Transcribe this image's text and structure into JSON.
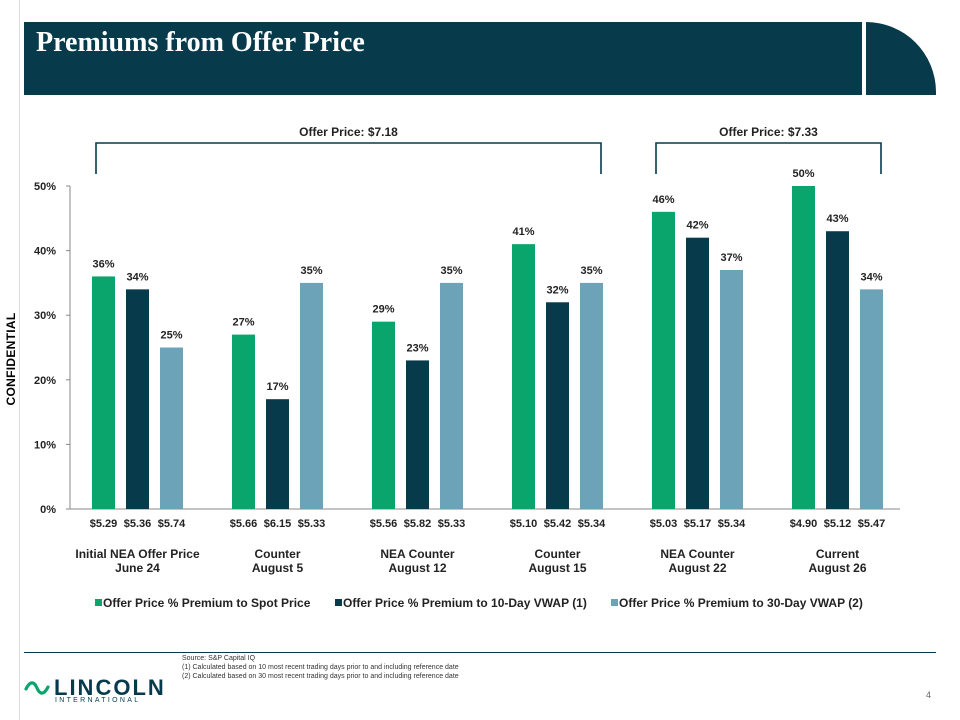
{
  "slide": {
    "title": "Premiums from Offer Price",
    "confidential": "CONFIDENTIAL",
    "page_number": "4"
  },
  "brand": {
    "name": "LINCOLN",
    "sub": "INTERNATIONAL",
    "color": "#073b4c"
  },
  "footnotes": [
    "Source: S&P Capital IQ",
    "(1) Calculated based on 10 most recent trading days prior to and including reference date",
    "(2) Calculated based on 30 most recent trading days prior to and including reference date"
  ],
  "chart_data": {
    "type": "bar",
    "y_unit": "%",
    "ylim": [
      0,
      50
    ],
    "yticks": [
      0,
      10,
      20,
      30,
      40,
      50
    ],
    "grid": false,
    "legend_position": "bottom",
    "brackets": [
      {
        "label": "Offer Price: $7.18",
        "from_group": 0,
        "to_group": 3
      },
      {
        "label": "Offer Price: $7.33",
        "from_group": 4,
        "to_group": 5
      }
    ],
    "groups": [
      {
        "label_line1": "Initial NEA Offer Price",
        "label_line2": "June 24",
        "prices": [
          "$5.29",
          "$5.36",
          "$5.74"
        ],
        "values": [
          36,
          34,
          25
        ]
      },
      {
        "label_line1": "Counter",
        "label_line2": "August 5",
        "prices": [
          "$5.66",
          "$6.15",
          "$5.33"
        ],
        "values": [
          27,
          17,
          35
        ]
      },
      {
        "label_line1": "NEA Counter",
        "label_line2": "August 12",
        "prices": [
          "$5.56",
          "$5.82",
          "$5.33"
        ],
        "values": [
          29,
          23,
          35
        ]
      },
      {
        "label_line1": "Counter",
        "label_line2": "August 15",
        "prices": [
          "$5.10",
          "$5.42",
          "$5.34"
        ],
        "values": [
          41,
          32,
          35
        ]
      },
      {
        "label_line1": "NEA Counter",
        "label_line2": "August 22",
        "prices": [
          "$5.03",
          "$5.17",
          "$5.34"
        ],
        "values": [
          46,
          42,
          37
        ]
      },
      {
        "label_line1": "Current",
        "label_line2": "August 26",
        "prices": [
          "$4.90",
          "$5.12",
          "$5.47"
        ],
        "values": [
          50,
          43,
          34
        ]
      }
    ],
    "series": [
      {
        "name": "Offer Price % Premium to Spot Price",
        "color": "#0aa56d"
      },
      {
        "name": "Offer Price % Premium to 10-Day VWAP (1)",
        "color": "#073b4c"
      },
      {
        "name": "Offer Price % Premium to 30-Day VWAP (2)",
        "color": "#6ca3b9"
      }
    ]
  }
}
